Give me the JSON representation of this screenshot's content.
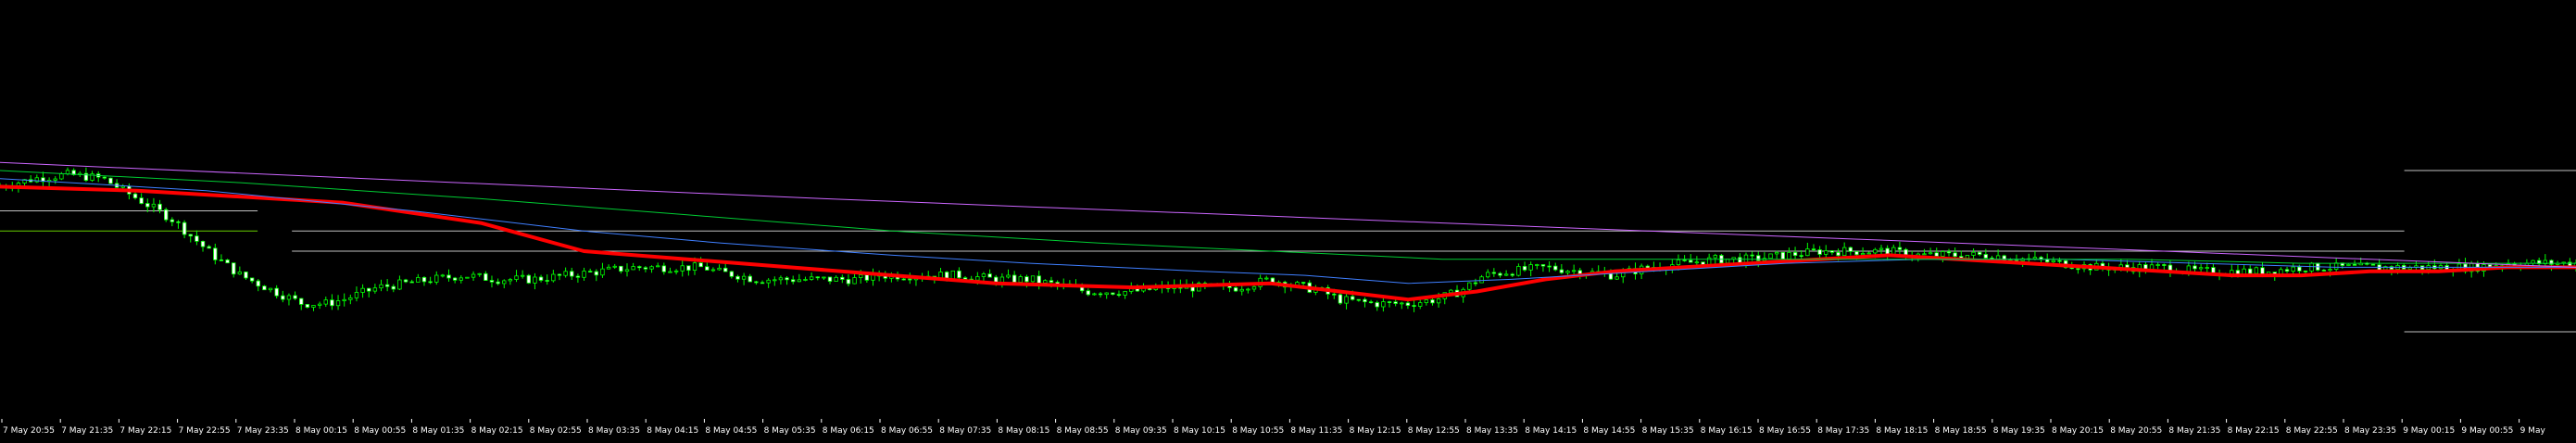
{
  "chart_data": {
    "type": "candlestick",
    "title": "",
    "xlabel": "",
    "ylabel": "",
    "grid": false,
    "legend": "none",
    "ylim": [
      0,
      100
    ],
    "colors": {
      "background": "#000000",
      "bull_body": "#00ff00",
      "bear_body": "#ffffff",
      "wick": "#00ff00",
      "axis_text": "#ffffff",
      "level_line": "#c0c0c0",
      "level_line_green": "#66cc00"
    },
    "x_tick_labels": [
      "7 May 20:55",
      "7 May 21:35",
      "7 May 22:15",
      "7 May 22:55",
      "7 May 23:35",
      "8 May 00:15",
      "8 May 00:55",
      "8 May 01:35",
      "8 May 02:15",
      "8 May 02:55",
      "8 May 03:35",
      "8 May 04:15",
      "8 May 04:55",
      "8 May 05:35",
      "8 May 06:15",
      "8 May 06:55",
      "8 May 07:35",
      "8 May 08:15",
      "8 May 08:55",
      "8 May 09:35",
      "8 May 10:15",
      "8 May 10:55",
      "8 May 11:35",
      "8 May 12:15",
      "8 May 12:55",
      "8 May 13:35",
      "8 May 14:15",
      "8 May 14:55",
      "8 May 15:35",
      "8 May 16:15",
      "8 May 16:55",
      "8 May 17:35",
      "8 May 18:15",
      "8 May 18:55",
      "8 May 19:35",
      "8 May 20:15",
      "8 May 20:55",
      "8 May 21:35",
      "8 May 22:15",
      "8 May 22:55",
      "8 May 23:35",
      "9 May 00:15",
      "9 May 00:55",
      "9 May"
    ],
    "price_path": [
      [
        0,
        56
      ],
      [
        10,
        58
      ],
      [
        20,
        59
      ],
      [
        30,
        58
      ],
      [
        40,
        53
      ],
      [
        50,
        48
      ],
      [
        62,
        39
      ],
      [
        70,
        34
      ],
      [
        80,
        30
      ],
      [
        88,
        27
      ],
      [
        95,
        27
      ],
      [
        100,
        28
      ],
      [
        110,
        31
      ],
      [
        118,
        32
      ],
      [
        126,
        33
      ],
      [
        135,
        34
      ],
      [
        145,
        33
      ],
      [
        155,
        33
      ],
      [
        165,
        34
      ],
      [
        175,
        35
      ],
      [
        185,
        36
      ],
      [
        190,
        36
      ],
      [
        200,
        36
      ],
      [
        205,
        36
      ],
      [
        208,
        35
      ],
      [
        215,
        34
      ],
      [
        220,
        33
      ],
      [
        230,
        33
      ],
      [
        240,
        33
      ],
      [
        250,
        33
      ],
      [
        256,
        34
      ],
      [
        262,
        34
      ],
      [
        270,
        34
      ],
      [
        280,
        34
      ],
      [
        290,
        33
      ],
      [
        300,
        33
      ],
      [
        305,
        32
      ],
      [
        312,
        31
      ],
      [
        316,
        30
      ],
      [
        320,
        30
      ],
      [
        330,
        30
      ],
      [
        340,
        31
      ],
      [
        350,
        31
      ],
      [
        360,
        31
      ],
      [
        370,
        33
      ],
      [
        380,
        31
      ],
      [
        385,
        30
      ],
      [
        390,
        28
      ],
      [
        400,
        27
      ],
      [
        410,
        27
      ],
      [
        418,
        28
      ],
      [
        425,
        30
      ],
      [
        432,
        34
      ],
      [
        440,
        35
      ],
      [
        450,
        36
      ],
      [
        460,
        35
      ],
      [
        470,
        34
      ],
      [
        480,
        36
      ],
      [
        490,
        37
      ],
      [
        500,
        38
      ],
      [
        510,
        38
      ],
      [
        520,
        39
      ],
      [
        530,
        40
      ],
      [
        540,
        40
      ],
      [
        550,
        40
      ],
      [
        558,
        39
      ],
      [
        560,
        39
      ],
      [
        570,
        39
      ],
      [
        580,
        39
      ],
      [
        590,
        38
      ],
      [
        600,
        37
      ],
      [
        610,
        36
      ],
      [
        620,
        36
      ],
      [
        630,
        36
      ],
      [
        640,
        35
      ],
      [
        650,
        35
      ],
      [
        660,
        35
      ],
      [
        670,
        36
      ],
      [
        680,
        36
      ],
      [
        690,
        36
      ],
      [
        700,
        36
      ],
      [
        710,
        36
      ],
      [
        720,
        36
      ],
      [
        730,
        37
      ],
      [
        740,
        37
      ],
      [
        750,
        37
      ]
    ],
    "series": [
      {
        "values": [
          [
            0,
            56
          ],
          [
            40,
            55
          ],
          [
            100,
            52
          ],
          [
            140,
            47
          ],
          [
            170,
            40
          ],
          [
            200,
            38
          ],
          [
            230,
            36
          ],
          [
            260,
            34
          ],
          [
            290,
            32
          ],
          [
            330,
            31
          ],
          [
            370,
            32
          ],
          [
            390,
            30
          ],
          [
            410,
            28
          ],
          [
            430,
            30
          ],
          [
            450,
            33
          ],
          [
            470,
            35
          ],
          [
            490,
            36
          ],
          [
            510,
            37
          ],
          [
            530,
            38
          ],
          [
            550,
            39
          ],
          [
            570,
            38
          ],
          [
            590,
            37
          ],
          [
            610,
            36
          ],
          [
            630,
            35
          ],
          [
            650,
            34
          ],
          [
            670,
            34
          ],
          [
            690,
            35
          ],
          [
            710,
            35
          ],
          [
            730,
            36
          ],
          [
            750,
            36
          ]
        ]
      },
      {
        "values": [
          [
            0,
            58
          ],
          [
            60,
            55
          ],
          [
            120,
            50
          ],
          [
            170,
            45
          ],
          [
            210,
            42
          ],
          [
            260,
            39
          ],
          [
            300,
            37
          ],
          [
            350,
            35
          ],
          [
            380,
            34
          ],
          [
            410,
            32
          ],
          [
            440,
            33
          ],
          [
            480,
            35
          ],
          [
            520,
            37
          ],
          [
            560,
            38
          ],
          [
            600,
            38
          ],
          [
            640,
            37
          ],
          [
            680,
            36
          ],
          [
            720,
            36
          ],
          [
            750,
            36
          ]
        ]
      },
      {
        "values": [
          [
            0,
            60
          ],
          [
            70,
            57
          ],
          [
            140,
            53
          ],
          [
            200,
            49
          ],
          [
            260,
            45
          ],
          [
            320,
            42
          ],
          [
            370,
            40
          ],
          [
            420,
            38
          ],
          [
            470,
            38
          ],
          [
            520,
            38
          ],
          [
            570,
            38
          ],
          [
            620,
            38
          ],
          [
            670,
            37
          ],
          [
            720,
            37
          ],
          [
            750,
            37
          ]
        ]
      },
      {
        "values": [
          [
            0,
            62
          ],
          [
            80,
            59
          ],
          [
            160,
            56
          ],
          [
            240,
            53
          ],
          [
            300,
            51
          ],
          [
            360,
            49
          ],
          [
            420,
            47
          ],
          [
            480,
            45
          ],
          [
            540,
            43
          ],
          [
            600,
            41
          ],
          [
            660,
            39
          ],
          [
            720,
            37
          ],
          [
            750,
            36
          ]
        ]
      }
    ],
    "levels": [
      {
        "y": 45,
        "x_from": 0,
        "x_to": 75
      },
      {
        "y": 45,
        "x_from": 85,
        "x_to": 700
      },
      {
        "y": 40,
        "x_from": 85,
        "x_to": 700
      },
      {
        "y": 50,
        "x_from": 0,
        "x_to": 75
      },
      {
        "y": 60,
        "x_from": 700,
        "x_to": 750
      },
      {
        "y": 20,
        "x_from": 700,
        "x_to": 750
      }
    ]
  }
}
